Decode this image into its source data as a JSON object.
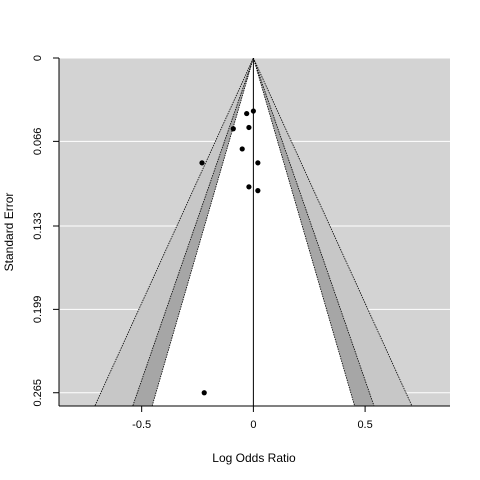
{
  "chart_data": {
    "type": "scatter",
    "subtype": "contour-enhanced funnel plot",
    "title": "",
    "xlabel": "Log Odds Ratio",
    "ylabel": "Standard Error",
    "xlim": [
      -0.87,
      0.88
    ],
    "ylim": [
      0.2755,
      0
    ],
    "y_reversed": true,
    "x_ticks": [
      -0.5,
      0,
      0.5
    ],
    "x_tick_labels": [
      "-0.5",
      "0",
      "0.5"
    ],
    "y_ticks": [
      0,
      0.066,
      0.133,
      0.199,
      0.265
    ],
    "y_tick_labels": [
      "0",
      "0.066",
      "0.133",
      "0.199",
      "0.265"
    ],
    "grid": "horizontal",
    "reference_line_x": 0,
    "contour_z": [
      1.645,
      1.96,
      2.576
    ],
    "contour_fills": [
      "#ffffff",
      "#a6a6a6",
      "#c7c7c7"
    ],
    "background_color": "#d3d3d3",
    "points": [
      {
        "x": 0.0,
        "y": 0.042
      },
      {
        "x": -0.03,
        "y": 0.044
      },
      {
        "x": -0.02,
        "y": 0.055
      },
      {
        "x": -0.09,
        "y": 0.056
      },
      {
        "x": -0.05,
        "y": 0.072
      },
      {
        "x": -0.23,
        "y": 0.083
      },
      {
        "x": 0.02,
        "y": 0.083
      },
      {
        "x": -0.02,
        "y": 0.102
      },
      {
        "x": 0.02,
        "y": 0.105
      },
      {
        "x": -0.22,
        "y": 0.265
      }
    ]
  }
}
